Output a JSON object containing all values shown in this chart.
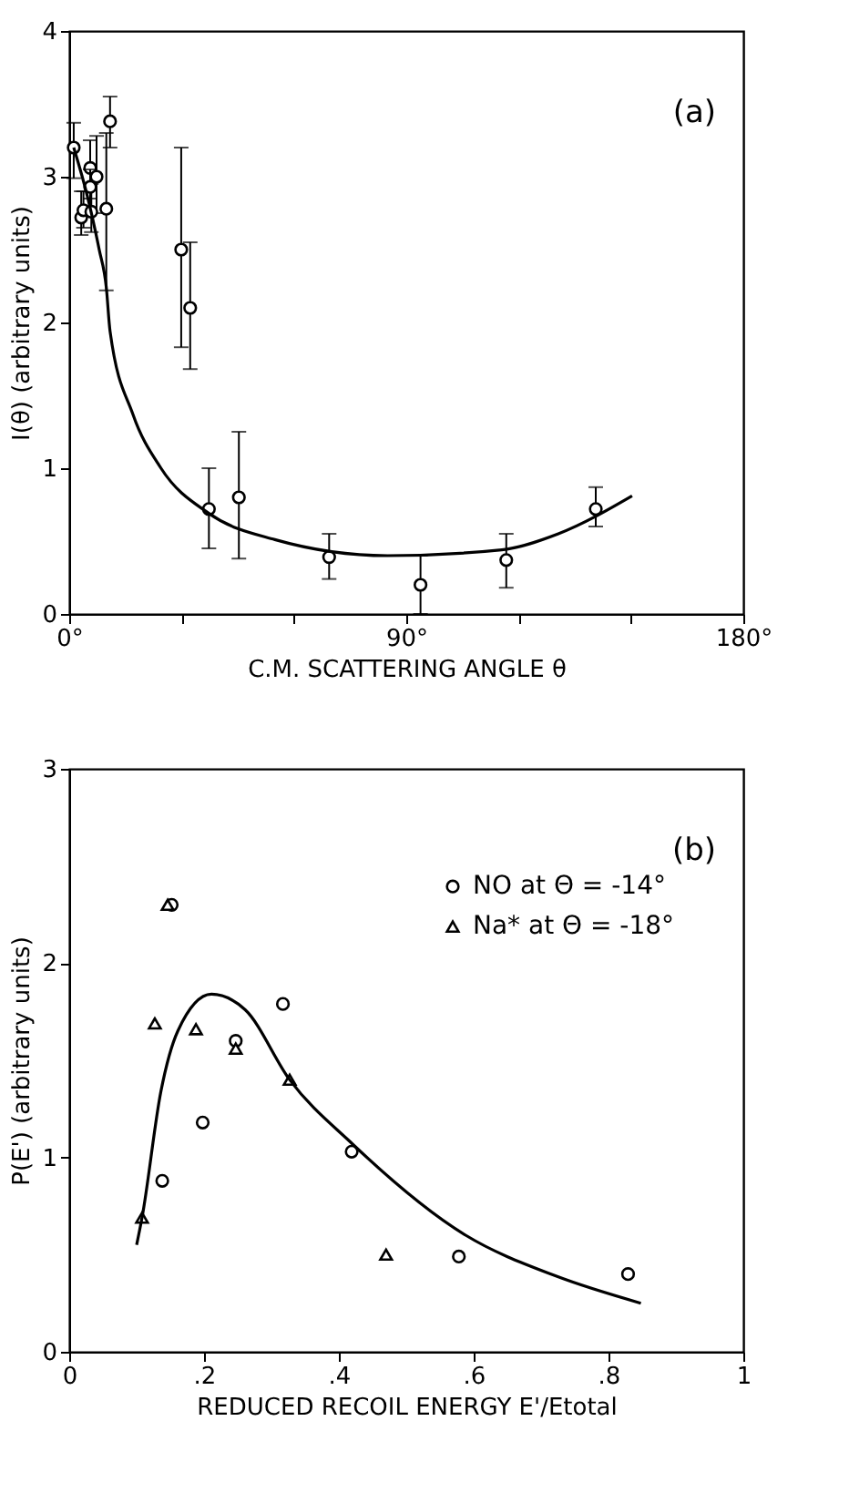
{
  "chart_data": [
    {
      "type": "scatter",
      "xlabel": "C.M. SCATTERING ANGLE θ",
      "ylabel": "I(θ)   (arbitrary units)",
      "annotations": [
        "(a)"
      ],
      "xlim": [
        0,
        180
      ],
      "ylim": [
        0,
        4
      ],
      "xticks": [
        {
          "value": 0,
          "label": "0°"
        },
        {
          "value": 30,
          "label": null
        },
        {
          "value": 60,
          "label": null
        },
        {
          "value": 90,
          "label": "90°"
        },
        {
          "value": 120,
          "label": null
        },
        {
          "value": 150,
          "label": null
        },
        {
          "value": 180,
          "label": "180°"
        }
      ],
      "yticks": [
        0,
        1,
        2,
        3,
        4
      ],
      "grid": false,
      "legend": false,
      "series": [
        {
          "type": "scatter",
          "marker": "circle",
          "color": "#000000",
          "x": [
            1.2,
            3.2,
            3.8,
            5.6,
            5.9,
            7.3,
            29.9,
            32.3,
            37.3,
            45.3,
            69.4,
            93.8,
            116.7,
            140.6
          ],
          "values": [
            3.2,
            2.72,
            2.77,
            3.06,
            2.76,
            3.0,
            2.5,
            2.1,
            0.72,
            0.8,
            0.39,
            0.2,
            0.37,
            0.72
          ],
          "errors": [
            [
              2.99,
              3.37
            ],
            [
              2.6,
              2.9
            ],
            [
              2.65,
              2.9
            ],
            [
              2.75,
              3.25
            ],
            [
              2.62,
              2.95
            ],
            [
              2.75,
              3.28
            ],
            [
              1.83,
              3.2
            ],
            [
              1.68,
              2.55
            ],
            [
              0.45,
              1.0
            ],
            [
              0.38,
              1.25
            ],
            [
              0.24,
              0.55
            ],
            [
              0,
              0.4
            ],
            [
              0.18,
              0.55
            ],
            [
              0.6,
              0.87
            ]
          ]
        },
        {
          "type": "scatter",
          "marker": "circle",
          "color": "#000000",
          "x": [
            5.6,
            9.9,
            10.9
          ],
          "values": [
            2.93,
            2.78,
            3.38
          ],
          "errors": [
            [
              2.85,
              3.05
            ],
            [
              2.22,
              3.3
            ],
            [
              3.2,
              3.55
            ]
          ]
        },
        {
          "type": "line",
          "color": "#000000",
          "x": [
            1.2,
            5,
            8,
            9.9,
            10.9,
            17,
            24.5,
            37.3,
            54.9,
            85,
            115.5,
            130.6,
            150.3
          ],
          "values": [
            3.2,
            2.85,
            2.5,
            2.24,
            1.94,
            1.37,
            1.0,
            0.69,
            0.51,
            0.4,
            0.44,
            0.55,
            0.81
          ]
        }
      ]
    },
    {
      "type": "scatter",
      "xlabel": "REDUCED RECOIL ENERGY E'/Etotal",
      "ylabel": "P(E')   (arbitrary units)",
      "annotations": [
        "(b)"
      ],
      "xlim": [
        0,
        1
      ],
      "ylim": [
        0,
        3
      ],
      "xticks": [
        0,
        {
          "value": 0.2,
          "label": ".2"
        },
        {
          "value": 0.4,
          "label": ".4"
        },
        {
          "value": 0.6,
          "label": ".6"
        },
        {
          "value": 0.8,
          "label": ".8"
        },
        1
      ],
      "yticks": [
        0,
        1,
        2,
        3
      ],
      "grid": false,
      "legend": "top right",
      "series": [
        {
          "type": "scatter",
          "name": "NO at Θ = -14°",
          "marker": "circle",
          "color": "#000000",
          "x": [
            0.152,
            0.247,
            0.317,
            0.138,
            0.198,
            0.419,
            0.578,
            0.829
          ],
          "values": [
            2.3,
            1.6,
            1.79,
            0.88,
            1.18,
            1.03,
            0.49,
            0.4
          ]
        },
        {
          "type": "scatter",
          "name": "Na* at Θ = -18°",
          "marker": "triangle",
          "color": "#000000",
          "x": [
            0.146,
            0.127,
            0.188,
            0.247,
            0.327,
            0.108,
            0.47
          ],
          "values": [
            2.3,
            1.69,
            1.66,
            1.56,
            1.4,
            0.69,
            0.5
          ]
        },
        {
          "type": "line",
          "color": "#000000",
          "x": [
            0.1,
            0.108,
            0.136,
            0.161,
            0.211,
            0.261,
            0.327,
            0.42,
            0.588,
            0.722,
            0.848
          ],
          "values": [
            0.55,
            0.69,
            1.34,
            1.65,
            1.84,
            1.76,
            1.4,
            1.07,
            0.6,
            0.39,
            0.25
          ]
        }
      ]
    }
  ]
}
